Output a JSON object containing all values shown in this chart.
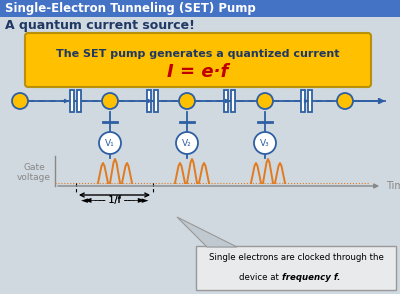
{
  "title": "Single-Electron Tunneling (SET) Pump",
  "subtitle": "A quantum current source!",
  "yellow_box_text": "The SET pump generates a quantized current",
  "formula": "I = e·f",
  "bg_color": "#d0d8e0",
  "title_bg": "#4472c4",
  "yellow_bg": "#ffc000",
  "blue_line_color": "#2e5fa3",
  "orange_color": "#e07b20",
  "gate_label": "Gate\nvoltage",
  "time_label": "Time",
  "period_label": "1/f",
  "note_line1": "Single electrons are clocked through the",
  "note_line2": "device at ",
  "note_freq": "frequency f.",
  "electron_color": "#ffc000",
  "electron_edge": "#2e5fa3",
  "voltage_labels": [
    "V₁",
    "V₂",
    "V₃"
  ]
}
